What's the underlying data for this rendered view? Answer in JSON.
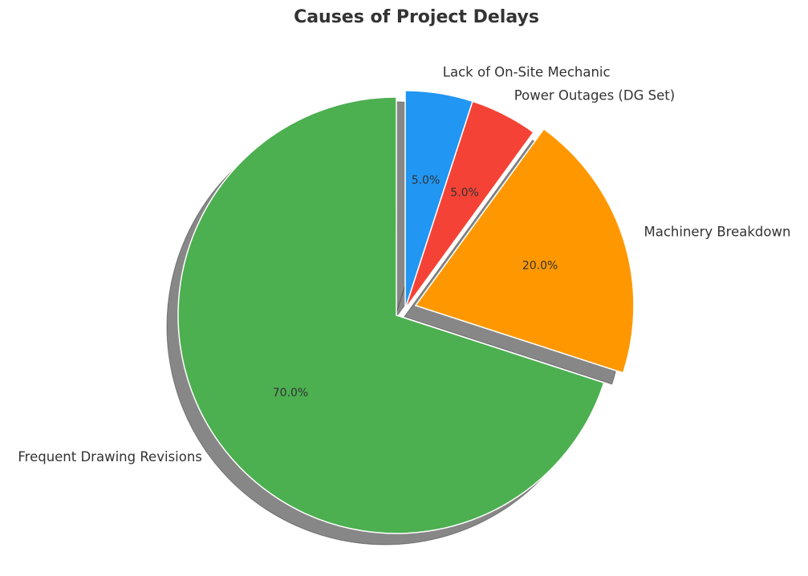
{
  "chart_data": {
    "type": "pie",
    "title": "Causes of Project Delays",
    "start_angle_deg": 90,
    "direction": "clockwise",
    "shadow": true,
    "slices": [
      {
        "label": "Lack of On-Site Mechanic",
        "value": 5.0,
        "pct_label": "5.0%",
        "color": "#2196F3",
        "explode": 0.0
      },
      {
        "label": "Power Outages (DG Set)",
        "value": 5.0,
        "pct_label": "5.0%",
        "color": "#F44336",
        "explode": 0.0
      },
      {
        "label": "Machinery Breakdown",
        "value": 20.0,
        "pct_label": "20.0%",
        "color": "#FF9800",
        "explode": 0.05
      },
      {
        "label": "Frequent Drawing Revisions",
        "value": 70.0,
        "pct_label": "70.0%",
        "color": "#4CAF50",
        "explode": 0.05
      }
    ]
  }
}
